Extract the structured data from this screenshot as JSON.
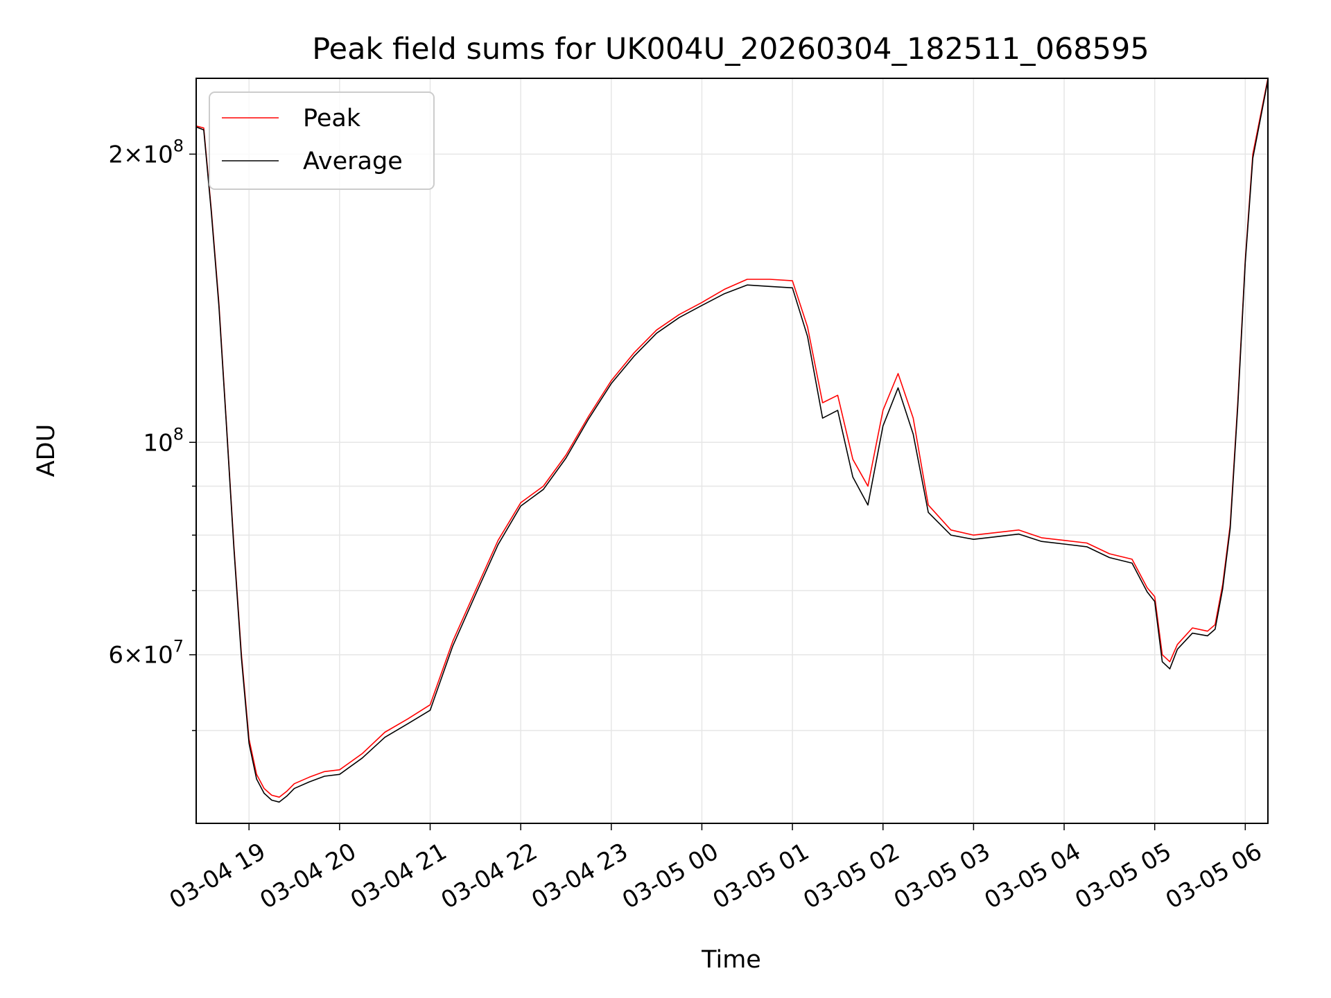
{
  "chart_data": {
    "type": "line",
    "title": "Peak field sums for UK004U_20260304_182511_068595",
    "xlabel": "Time",
    "ylabel": "ADU",
    "y_scale": "log",
    "grid": true,
    "legend_position": "top-left",
    "xlim": [
      "2026-03-04 18:25",
      "2026-03-05 06:15"
    ],
    "ylim": [
      40000000,
      240000000
    ],
    "x_ticks": [
      "03-04 19",
      "03-04 20",
      "03-04 21",
      "03-04 22",
      "03-04 23",
      "03-05 00",
      "03-05 01",
      "03-05 02",
      "03-05 03",
      "03-05 04",
      "03-05 05",
      "03-05 06"
    ],
    "y_ticks": [
      {
        "value": 200000000,
        "mantissa": "2×10",
        "exponent": "8"
      },
      {
        "value": 100000000,
        "mantissa": "10",
        "exponent": "8"
      },
      {
        "value": 60000000,
        "mantissa": "6×10",
        "exponent": "7"
      }
    ],
    "series": [
      {
        "name": "Peak",
        "color": "#ff0000",
        "points": [
          [
            "2026-03-04 18:25",
            214000000
          ],
          [
            "2026-03-04 18:30",
            213000000
          ],
          [
            "2026-03-04 18:35",
            175000000
          ],
          [
            "2026-03-04 18:40",
            140000000
          ],
          [
            "2026-03-04 18:45",
            105000000
          ],
          [
            "2026-03-04 18:50",
            78000000
          ],
          [
            "2026-03-04 18:55",
            60000000
          ],
          [
            "2026-03-04 19:00",
            49000000
          ],
          [
            "2026-03-04 19:05",
            45000000
          ],
          [
            "2026-03-04 19:10",
            43500000
          ],
          [
            "2026-03-04 19:15",
            42800000
          ],
          [
            "2026-03-04 19:20",
            42600000
          ],
          [
            "2026-03-04 19:25",
            43200000
          ],
          [
            "2026-03-04 19:30",
            44000000
          ],
          [
            "2026-03-04 19:40",
            44700000
          ],
          [
            "2026-03-04 19:50",
            45300000
          ],
          [
            "2026-03-04 20:00",
            45500000
          ],
          [
            "2026-03-04 20:15",
            47300000
          ],
          [
            "2026-03-04 20:30",
            49800000
          ],
          [
            "2026-03-04 20:45",
            51400000
          ],
          [
            "2026-03-04 21:00",
            53200000
          ],
          [
            "2026-03-04 21:15",
            62000000
          ],
          [
            "2026-03-04 21:30",
            70000000
          ],
          [
            "2026-03-04 21:45",
            79000000
          ],
          [
            "2026-03-04 22:00",
            86500000
          ],
          [
            "2026-03-04 22:15",
            90000000
          ],
          [
            "2026-03-04 22:30",
            97000000
          ],
          [
            "2026-03-04 22:45",
            106500000
          ],
          [
            "2026-03-04 23:00",
            116000000
          ],
          [
            "2026-03-04 23:15",
            124000000
          ],
          [
            "2026-03-04 23:30",
            131000000
          ],
          [
            "2026-03-04 23:45",
            136000000
          ],
          [
            "2026-03-05 00:00",
            140000000
          ],
          [
            "2026-03-05 00:15",
            144500000
          ],
          [
            "2026-03-05 00:30",
            148000000
          ],
          [
            "2026-03-05 00:45",
            148000000
          ],
          [
            "2026-03-05 01:00",
            147500000
          ],
          [
            "2026-03-05 01:10",
            132000000
          ],
          [
            "2026-03-05 01:20",
            110000000
          ],
          [
            "2026-03-05 01:30",
            112000000
          ],
          [
            "2026-03-05 01:40",
            96000000
          ],
          [
            "2026-03-05 01:50",
            90000000
          ],
          [
            "2026-03-05 02:00",
            108000000
          ],
          [
            "2026-03-05 02:10",
            118000000
          ],
          [
            "2026-03-05 02:20",
            106000000
          ],
          [
            "2026-03-05 02:30",
            86000000
          ],
          [
            "2026-03-05 02:45",
            81000000
          ],
          [
            "2026-03-05 03:00",
            80000000
          ],
          [
            "2026-03-05 03:15",
            80500000
          ],
          [
            "2026-03-05 03:30",
            81000000
          ],
          [
            "2026-03-05 03:45",
            79500000
          ],
          [
            "2026-03-05 04:00",
            79000000
          ],
          [
            "2026-03-05 04:15",
            78500000
          ],
          [
            "2026-03-05 04:30",
            76500000
          ],
          [
            "2026-03-05 04:45",
            75500000
          ],
          [
            "2026-03-05 04:55",
            70500000
          ],
          [
            "2026-03-05 05:00",
            69000000
          ],
          [
            "2026-03-05 05:05",
            60000000
          ],
          [
            "2026-03-05 05:10",
            59000000
          ],
          [
            "2026-03-05 05:15",
            61500000
          ],
          [
            "2026-03-05 05:25",
            64000000
          ],
          [
            "2026-03-05 05:35",
            63500000
          ],
          [
            "2026-03-05 05:40",
            64500000
          ],
          [
            "2026-03-05 05:45",
            71000000
          ],
          [
            "2026-03-05 05:50",
            82000000
          ],
          [
            "2026-03-05 05:55",
            110000000
          ],
          [
            "2026-03-05 06:00",
            155000000
          ],
          [
            "2026-03-05 06:05",
            200000000
          ],
          [
            "2026-03-05 06:15",
            240000000
          ]
        ]
      },
      {
        "name": "Average",
        "color": "#000000",
        "points": [
          [
            "2026-03-04 18:25",
            213500000
          ],
          [
            "2026-03-04 18:30",
            212000000
          ],
          [
            "2026-03-04 18:35",
            174000000
          ],
          [
            "2026-03-04 18:40",
            139000000
          ],
          [
            "2026-03-04 18:45",
            104500000
          ],
          [
            "2026-03-04 18:50",
            77500000
          ],
          [
            "2026-03-04 18:55",
            59500000
          ],
          [
            "2026-03-04 19:00",
            48500000
          ],
          [
            "2026-03-04 19:05",
            44500000
          ],
          [
            "2026-03-04 19:10",
            43000000
          ],
          [
            "2026-03-04 19:15",
            42300000
          ],
          [
            "2026-03-04 19:20",
            42100000
          ],
          [
            "2026-03-04 19:25",
            42700000
          ],
          [
            "2026-03-04 19:30",
            43500000
          ],
          [
            "2026-03-04 19:40",
            44200000
          ],
          [
            "2026-03-04 19:50",
            44800000
          ],
          [
            "2026-03-04 20:00",
            45000000
          ],
          [
            "2026-03-04 20:15",
            46800000
          ],
          [
            "2026-03-04 20:30",
            49200000
          ],
          [
            "2026-03-04 20:45",
            50800000
          ],
          [
            "2026-03-04 21:00",
            52500000
          ],
          [
            "2026-03-04 21:15",
            61300000
          ],
          [
            "2026-03-04 21:30",
            69300000
          ],
          [
            "2026-03-04 21:45",
            78200000
          ],
          [
            "2026-03-04 22:00",
            85800000
          ],
          [
            "2026-03-04 22:15",
            89300000
          ],
          [
            "2026-03-04 22:30",
            96300000
          ],
          [
            "2026-03-04 22:45",
            105800000
          ],
          [
            "2026-03-04 23:00",
            115200000
          ],
          [
            "2026-03-04 23:15",
            123000000
          ],
          [
            "2026-03-04 23:30",
            130000000
          ],
          [
            "2026-03-04 23:45",
            135000000
          ],
          [
            "2026-03-05 00:00",
            139000000
          ],
          [
            "2026-03-05 00:15",
            143000000
          ],
          [
            "2026-03-05 00:30",
            146000000
          ],
          [
            "2026-03-05 00:45",
            145500000
          ],
          [
            "2026-03-05 01:00",
            145000000
          ],
          [
            "2026-03-05 01:10",
            129000000
          ],
          [
            "2026-03-05 01:20",
            106000000
          ],
          [
            "2026-03-05 01:30",
            108000000
          ],
          [
            "2026-03-05 01:40",
            92000000
          ],
          [
            "2026-03-05 01:50",
            86000000
          ],
          [
            "2026-03-05 02:00",
            104000000
          ],
          [
            "2026-03-05 02:10",
            114000000
          ],
          [
            "2026-03-05 02:20",
            102000000
          ],
          [
            "2026-03-05 02:30",
            84500000
          ],
          [
            "2026-03-05 02:45",
            80000000
          ],
          [
            "2026-03-05 03:00",
            79200000
          ],
          [
            "2026-03-05 03:15",
            79700000
          ],
          [
            "2026-03-05 03:30",
            80200000
          ],
          [
            "2026-03-05 03:45",
            78800000
          ],
          [
            "2026-03-05 04:00",
            78300000
          ],
          [
            "2026-03-05 04:15",
            77800000
          ],
          [
            "2026-03-05 04:30",
            75800000
          ],
          [
            "2026-03-05 04:45",
            74800000
          ],
          [
            "2026-03-05 04:55",
            69800000
          ],
          [
            "2026-03-05 05:00",
            68200000
          ],
          [
            "2026-03-05 05:05",
            59000000
          ],
          [
            "2026-03-05 05:10",
            58000000
          ],
          [
            "2026-03-05 05:15",
            60800000
          ],
          [
            "2026-03-05 05:25",
            63200000
          ],
          [
            "2026-03-05 05:35",
            62800000
          ],
          [
            "2026-03-05 05:40",
            63800000
          ],
          [
            "2026-03-05 05:45",
            70300000
          ],
          [
            "2026-03-05 05:50",
            81300000
          ],
          [
            "2026-03-05 05:55",
            109000000
          ],
          [
            "2026-03-05 06:00",
            154000000
          ],
          [
            "2026-03-05 06:05",
            198000000
          ],
          [
            "2026-03-05 06:15",
            239000000
          ]
        ]
      }
    ]
  }
}
